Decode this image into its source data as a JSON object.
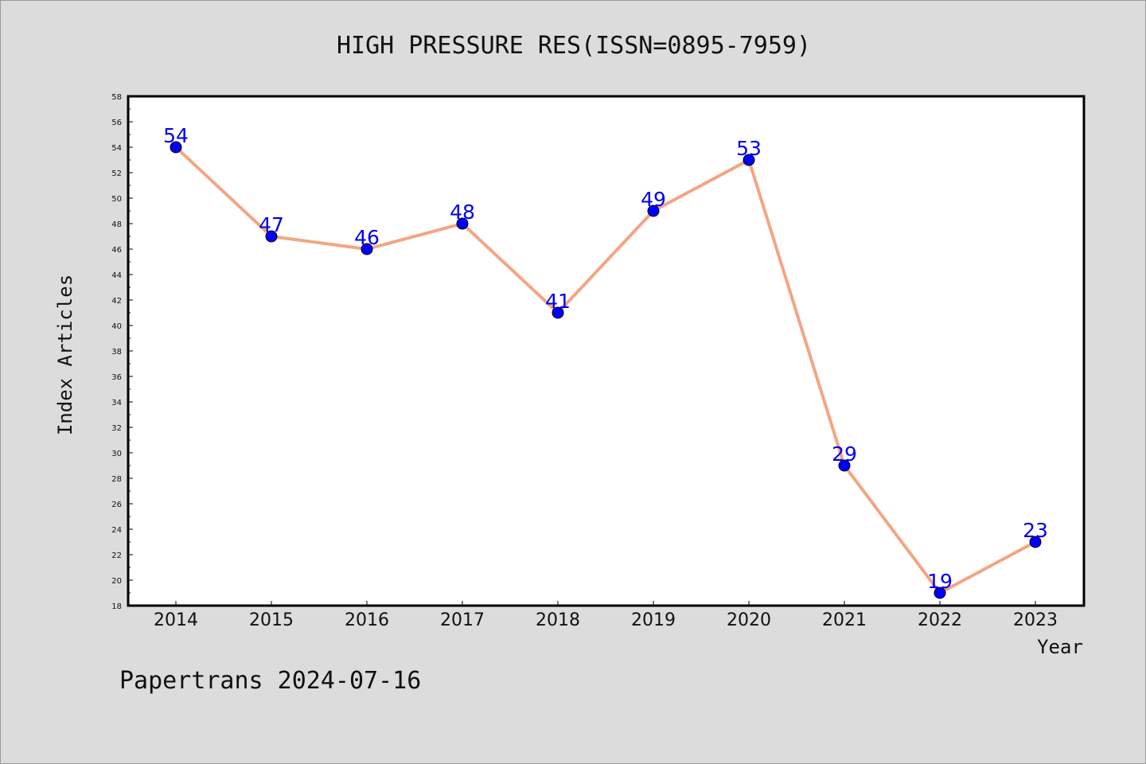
{
  "chart_data": {
    "type": "line",
    "title": "HIGH PRESSURE RES(ISSN=0895-7959)",
    "xlabel": "Year",
    "ylabel": "Index Articles",
    "categories": [
      "2014",
      "2015",
      "2016",
      "2017",
      "2018",
      "2019",
      "2020",
      "2021",
      "2022",
      "2023"
    ],
    "values": [
      54,
      47,
      46,
      48,
      41,
      49,
      53,
      29,
      19,
      23
    ],
    "ylim": [
      18,
      58
    ],
    "ytick_step": 2,
    "grid": false,
    "data_labels": true,
    "colors": {
      "line": "#f4a582",
      "marker": "#0000ff",
      "label": "#0000ee",
      "background": "#dcdcdc",
      "plot_background": "#ffffff"
    }
  },
  "footer": {
    "text": "Papertrans 2024-07-16"
  }
}
